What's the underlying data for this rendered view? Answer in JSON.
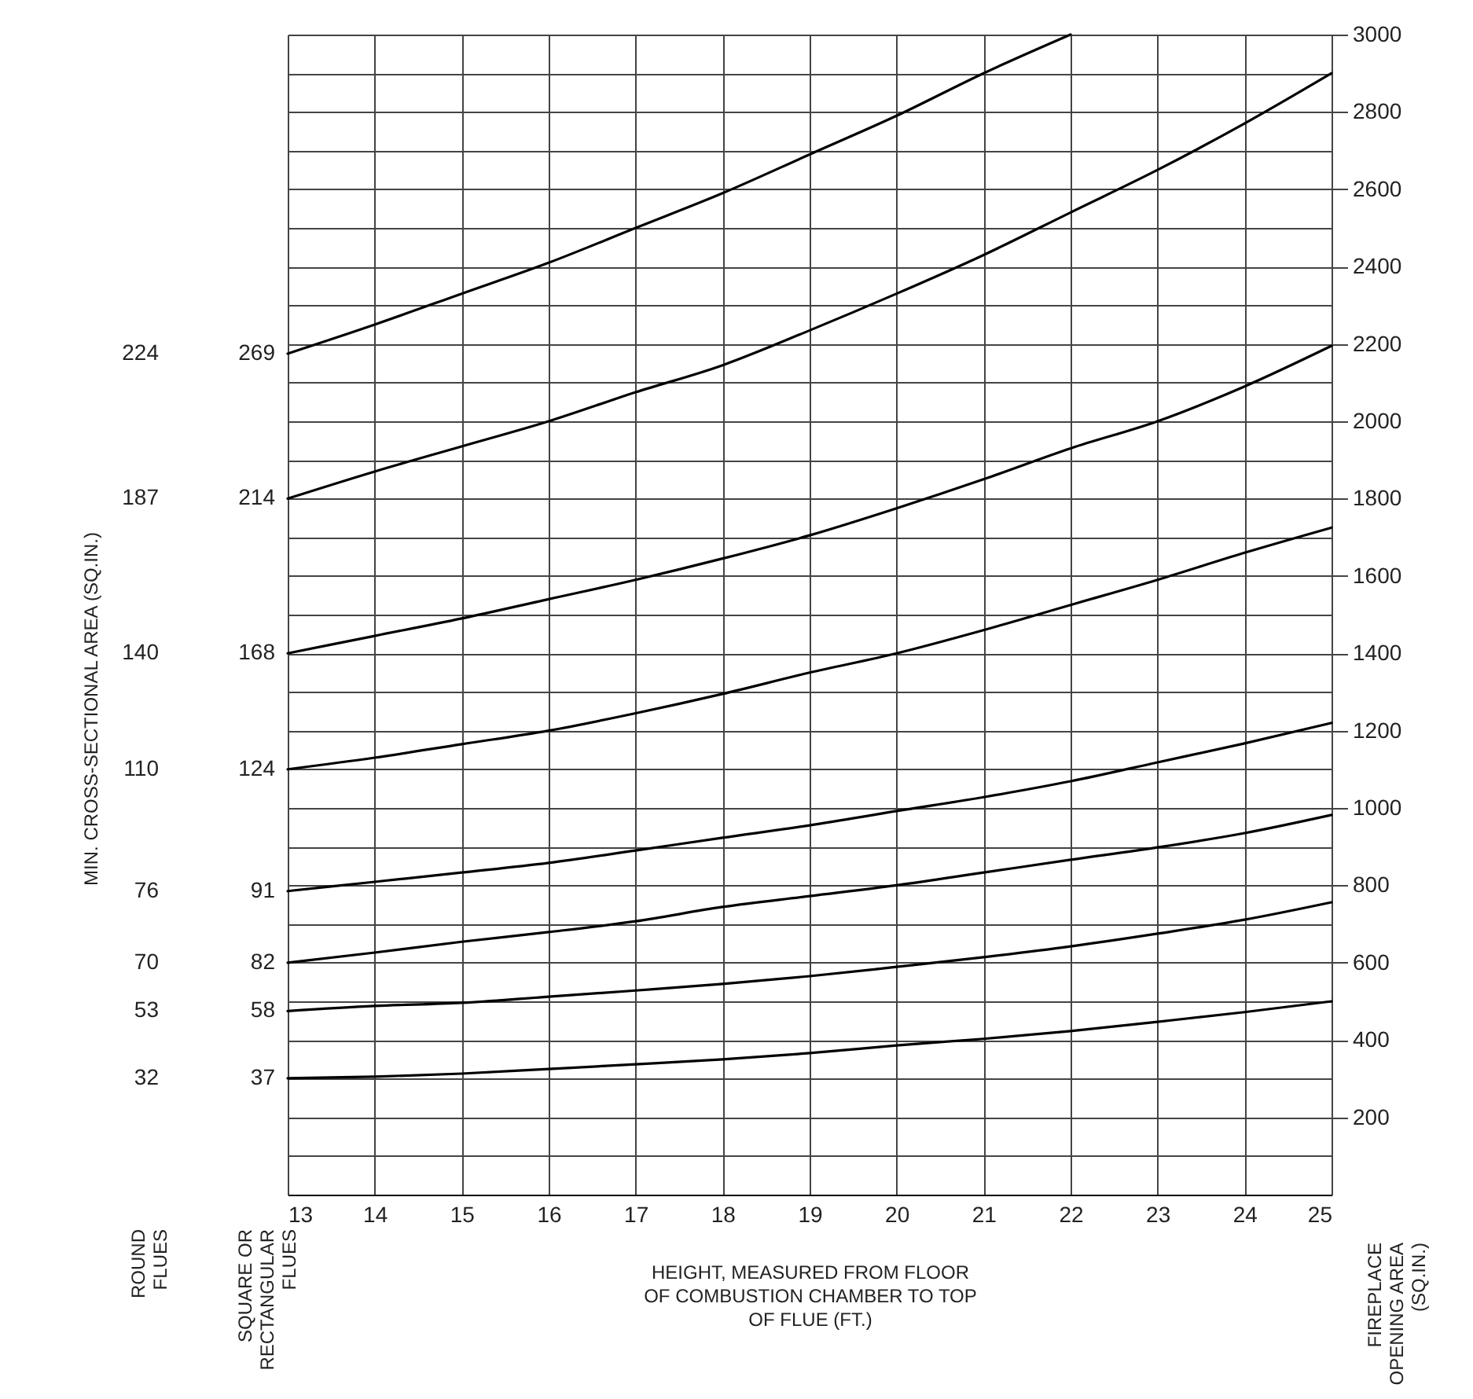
{
  "chart_data": {
    "type": "line",
    "xlabel": "HEIGHT, MEASURED FROM FLOOR OF COMBUSTION CHAMBER TO TOP OF FLUE (FT.)",
    "y2label": "FIREPLACE OPENING AREA (SQ.IN.)",
    "annotations": [
      "MIN. CROSS-SECTIONAL AREA (SQ.IN.)",
      "ROUND FLUES",
      "SQUARE OR RECTANGULAR FLUES",
      "224",
      "187",
      "140",
      "110",
      "76",
      "70",
      "53",
      "32"
    ],
    "x": [
      13,
      14,
      15,
      16,
      17,
      18,
      19,
      20,
      21,
      22,
      23,
      24,
      25
    ],
    "xlim": [
      13,
      25
    ],
    "xticks": [
      13,
      14,
      15,
      16,
      17,
      18,
      19,
      20,
      21,
      22,
      23,
      24,
      25
    ],
    "y2lim": [
      0,
      3000
    ],
    "y2ticks": [
      {
        "value": 100,
        "label": null
      },
      200,
      {
        "value": 300,
        "label": null
      },
      400,
      {
        "value": 500,
        "label": null
      },
      600,
      {
        "value": 700,
        "label": null
      },
      800,
      {
        "value": 900,
        "label": null
      },
      1000,
      {
        "value": 1100,
        "label": null
      },
      1200,
      {
        "value": 1300,
        "label": null
      },
      1400,
      {
        "value": 1500,
        "label": null
      },
      1600,
      {
        "value": 1700,
        "label": null
      },
      1800,
      {
        "value": 1900,
        "label": null
      },
      2000,
      {
        "value": 2100,
        "label": null
      },
      2200,
      {
        "value": 2300,
        "label": null
      },
      2400,
      {
        "value": 2500,
        "label": null
      },
      2600,
      {
        "value": 2700,
        "label": null
      },
      2800,
      {
        "value": 2900,
        "label": null
      },
      3000
    ],
    "grid": true,
    "series": [
      {
        "name": "269",
        "color": "#000000",
        "axis": "y2",
        "values": [
          2175,
          2250,
          2330,
          2410,
          2500,
          2590,
          2690,
          2790,
          2900,
          3000,
          null,
          null,
          null
        ]
      },
      {
        "name": "214",
        "color": "#000000",
        "axis": "y2",
        "values": [
          1800,
          1870,
          1935,
          2000,
          2075,
          2145,
          2235,
          2330,
          2430,
          2540,
          2650,
          2770,
          2900
        ]
      },
      {
        "name": "168",
        "color": "#000000",
        "axis": "y2",
        "values": [
          1400,
          1445,
          1490,
          1540,
          1590,
          1645,
          1705,
          1775,
          1850,
          1930,
          2000,
          2090,
          2195
        ]
      },
      {
        "name": "124",
        "color": "#000000",
        "axis": "y2",
        "values": [
          1100,
          1130,
          1165,
          1200,
          1245,
          1295,
          1350,
          1400,
          1460,
          1525,
          1590,
          1660,
          1725
        ]
      },
      {
        "name": "91",
        "color": "#000000",
        "axis": "y2",
        "values": [
          785,
          809,
          833,
          858,
          890,
          923,
          955,
          992,
          1028,
          1069,
          1118,
          1167,
          1220
        ]
      },
      {
        "name": "82",
        "color": "#000000",
        "axis": "y2",
        "values": [
          600,
          626,
          654,
          679,
          707,
          744,
          772,
          800,
          833,
          866,
          898,
          935,
          982
        ]
      },
      {
        "name": "58",
        "color": "#000000",
        "axis": "y2",
        "values": [
          475,
          488,
          496,
          512,
          528,
          545,
          565,
          589,
          614,
          642,
          675,
          711,
          756
        ]
      },
      {
        "name": "37",
        "color": "#000000",
        "axis": "y2",
        "values": [
          301,
          305,
          313,
          325,
          337,
          350,
          366,
          386,
          403,
          423,
          447,
          472,
          500
        ]
      }
    ]
  }
}
